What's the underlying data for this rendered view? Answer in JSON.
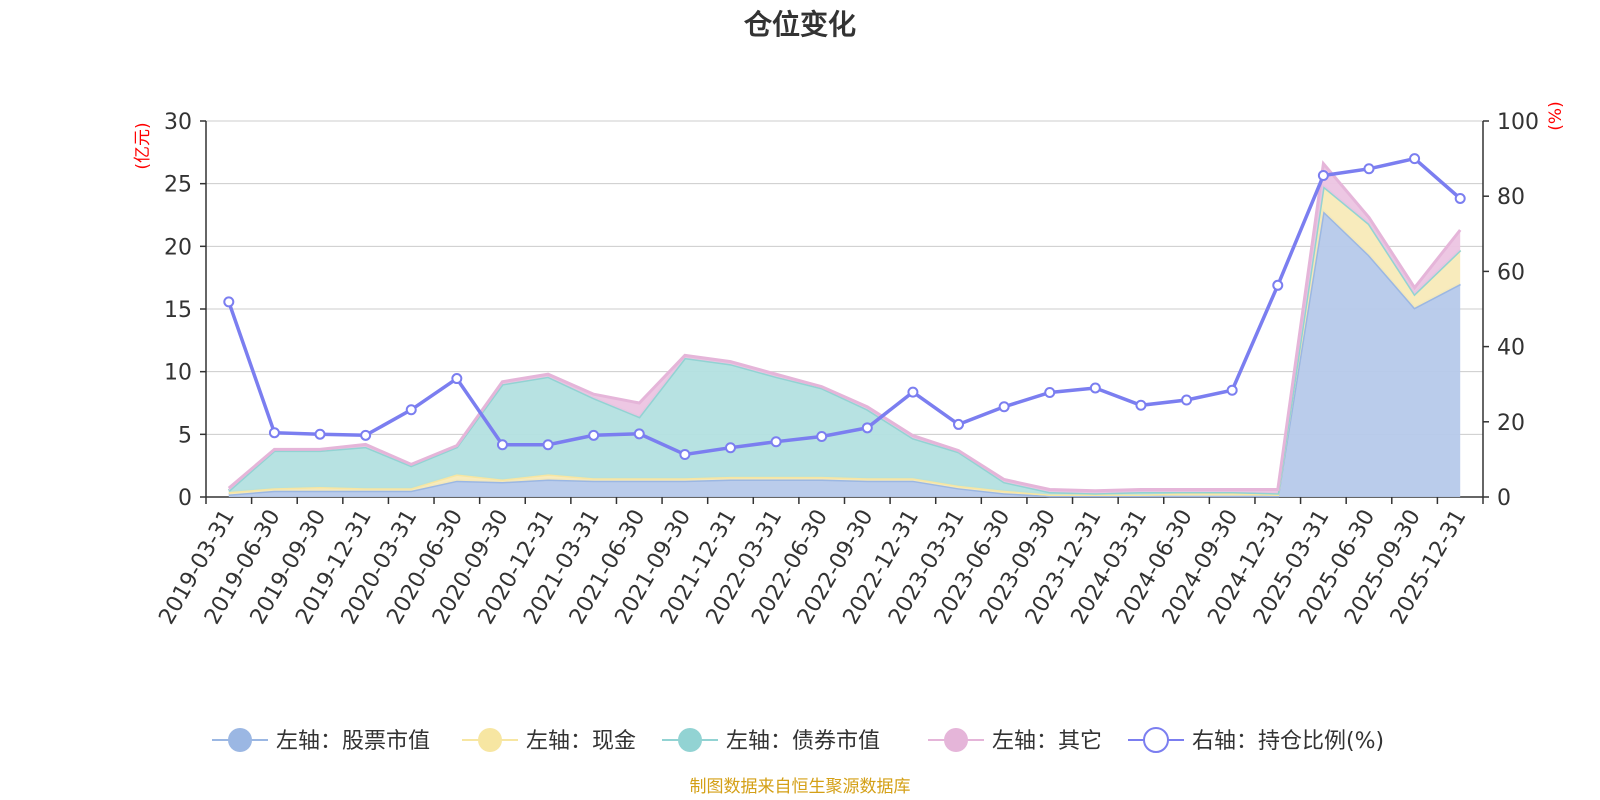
{
  "chart_data": {
    "type": "area",
    "title": "仓位变化",
    "source_note": "制图数据来自恒生聚源数据库",
    "left_axis": {
      "unit": "(亿元)",
      "ticks": [
        "0",
        "5",
        "10",
        "15",
        "20",
        "25",
        "30"
      ],
      "range": [
        0,
        30
      ]
    },
    "right_axis": {
      "unit": "(%)",
      "ticks": [
        "0",
        "20",
        "40",
        "60",
        "80",
        "100"
      ],
      "range": [
        0,
        100
      ]
    },
    "categories": [
      "2019-03-31",
      "2019-06-30",
      "2019-09-30",
      "2019-12-31",
      "2020-03-31",
      "2020-06-30",
      "2020-09-30",
      "2020-12-31",
      "2021-03-31",
      "2021-06-30",
      "2021-09-30",
      "2021-12-31",
      "2022-03-31",
      "2022-06-30",
      "2022-09-30",
      "2022-12-31",
      "2023-03-31",
      "2023-06-30",
      "2023-09-30",
      "2023-12-31",
      "2024-03-31",
      "2024-06-30",
      "2024-09-30",
      "2024-12-31",
      "2025-03-31",
      "2025-06-30",
      "2025-09-30",
      "2025-12-31"
    ],
    "series": [
      {
        "name": "左轴：股票市值",
        "axis": "left",
        "color": "#9bb7e3",
        "fill": "#b6c9ea",
        "values": [
          0.2,
          0.5,
          0.5,
          0.5,
          0.5,
          1.3,
          1.2,
          1.4,
          1.3,
          1.3,
          1.3,
          1.4,
          1.4,
          1.4,
          1.3,
          1.3,
          0.7,
          0.3,
          0.1,
          0.1,
          0.1,
          0.1,
          0.1,
          0.1,
          22.8,
          19.3,
          15.1,
          17.0
        ]
      },
      {
        "name": "左轴：现金",
        "axis": "left",
        "color": "#f7e6a2",
        "fill": "#f8eab8",
        "values": [
          0.2,
          0.2,
          0.3,
          0.2,
          0.2,
          0.5,
          0.2,
          0.4,
          0.2,
          0.2,
          0.2,
          0.2,
          0.2,
          0.2,
          0.2,
          0.2,
          0.2,
          0.2,
          0.1,
          0.1,
          0.1,
          0.2,
          0.2,
          0.1,
          2.0,
          2.5,
          1.1,
          2.7
        ]
      },
      {
        "name": "左轴：债券市值",
        "axis": "left",
        "color": "#92d3d3",
        "fill": "#b3e0e0",
        "values": [
          0.1,
          3.0,
          2.9,
          3.3,
          1.8,
          2.2,
          7.6,
          7.8,
          6.4,
          4.9,
          9.6,
          9.0,
          8.0,
          7.1,
          5.5,
          3.2,
          2.7,
          0.7,
          0.2,
          0.1,
          0.2,
          0.1,
          0.1,
          0.1,
          0.0,
          0.0,
          0.0,
          0.0
        ]
      },
      {
        "name": "左轴：其它",
        "axis": "left",
        "color": "#e5b5d9",
        "fill": "#ecc4e1",
        "values": [
          0.2,
          0.1,
          0.1,
          0.2,
          0.1,
          0.1,
          0.2,
          0.2,
          0.3,
          1.1,
          0.2,
          0.2,
          0.2,
          0.1,
          0.2,
          0.2,
          0.1,
          0.2,
          0.2,
          0.2,
          0.2,
          0.2,
          0.2,
          0.3,
          1.8,
          0.5,
          0.5,
          1.6
        ]
      },
      {
        "name": "右轴：持仓比例(%)",
        "axis": "right",
        "color": "#7b7ef0",
        "type": "line",
        "values": [
          51.9,
          17.1,
          16.7,
          16.4,
          23.2,
          31.5,
          13.9,
          13.9,
          16.4,
          16.8,
          11.3,
          13.1,
          14.7,
          16.1,
          18.4,
          27.9,
          19.3,
          24.0,
          27.8,
          29.0,
          24.4,
          25.8,
          28.4,
          56.3,
          85.5,
          87.3,
          90.0,
          79.4
        ]
      }
    ]
  }
}
